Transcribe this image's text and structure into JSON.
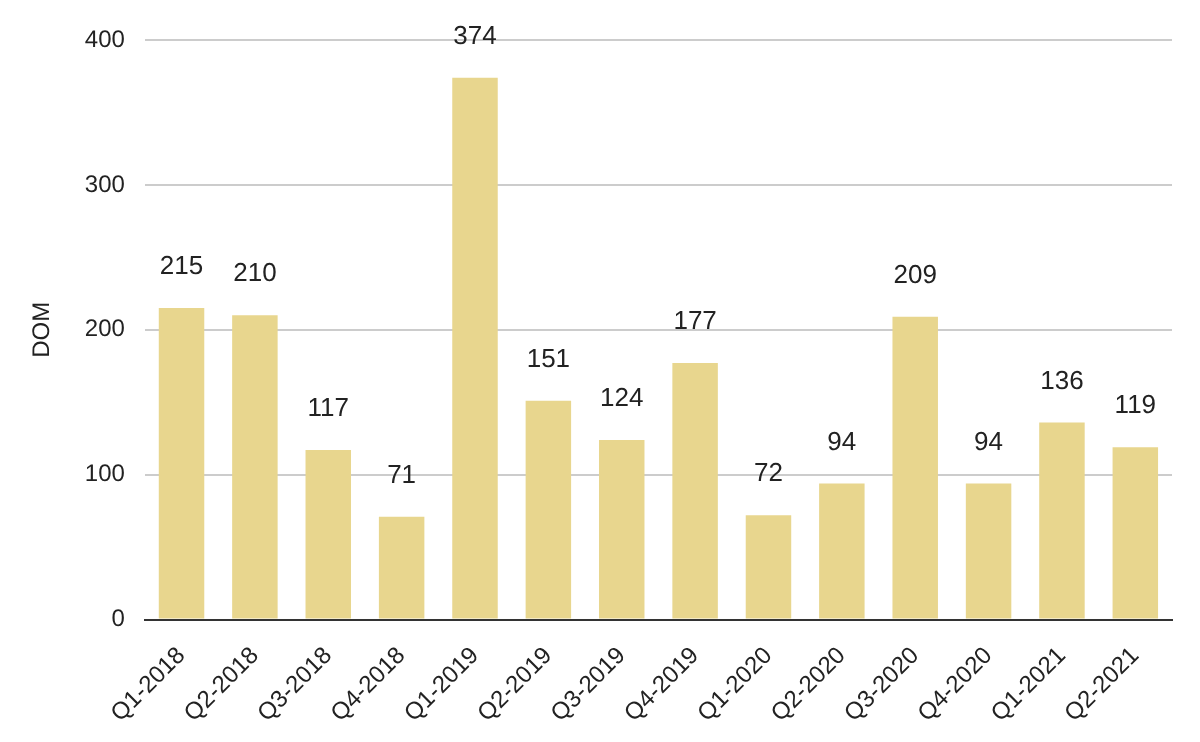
{
  "chart_data": {
    "type": "bar",
    "ylabel": "DOM",
    "categories": [
      "Q1-2018",
      "Q2-2018",
      "Q3-2018",
      "Q4-2018",
      "Q1-2019",
      "Q2-2019",
      "Q3-2019",
      "Q4-2019",
      "Q1-2020",
      "Q2-2020",
      "Q3-2020",
      "Q4-2020",
      "Q1-2021",
      "Q2-2021"
    ],
    "values": [
      215,
      210,
      117,
      71,
      374,
      151,
      124,
      177,
      72,
      94,
      209,
      94,
      136,
      119
    ],
    "color": "#e8d68e",
    "ylim": [
      0,
      400
    ],
    "yticks": [
      0,
      100,
      200,
      300,
      400
    ],
    "grid": "y",
    "data_labels": true,
    "legend": false
  }
}
